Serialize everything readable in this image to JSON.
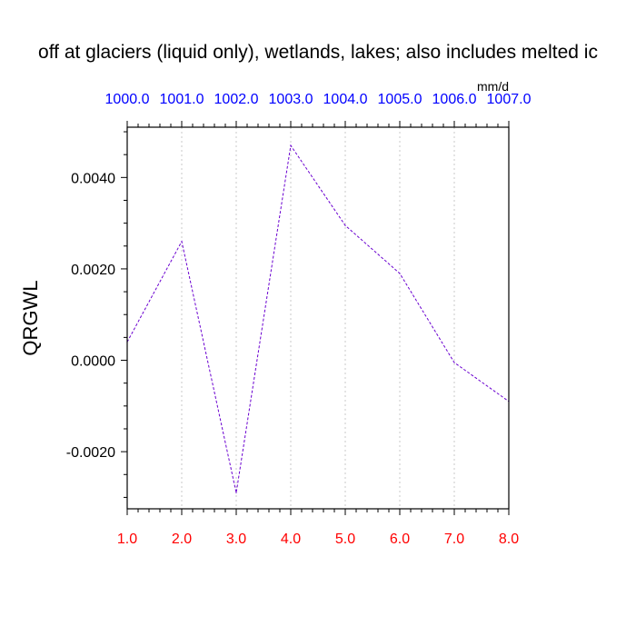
{
  "chart_data": {
    "type": "line",
    "title": "off at glaciers (liquid only), wetlands, lakes; also includes melted ic",
    "units": "mm/d",
    "ylabel": "QRGWL",
    "x": [
      1.0,
      2.0,
      3.0,
      4.0,
      5.0,
      6.0,
      7.0,
      8.0
    ],
    "xlim": [
      1.0,
      8.0
    ],
    "ylim": [
      -0.00325,
      0.0051
    ],
    "bottom_tick_labels": [
      "1.0",
      "2.0",
      "3.0",
      "4.0",
      "5.0",
      "6.0",
      "7.0",
      "8.0"
    ],
    "top_tick_labels": [
      "1000.0",
      "1001.0",
      "1002.0",
      "1003.0",
      "1004.0",
      "1005.0",
      "1006.0",
      "1007.0"
    ],
    "y_ticks": [
      -0.002,
      0.0,
      0.002,
      0.004
    ],
    "y_tick_labels": [
      "-0.0020",
      "0.0000",
      "0.0020",
      "0.0040"
    ],
    "grid": "vertical dotted at x ticks",
    "series": [
      {
        "values": [
          0.0004,
          0.0026,
          -0.0029,
          0.0047,
          0.00295,
          0.0019,
          -5e-05,
          -0.0009
        ]
      }
    ],
    "colors": {
      "line": "#6a00d0",
      "bottom_ticks": "#ff0000",
      "top_ticks": "#0000ff",
      "grid": "#c8c8c8",
      "axes": "#000000"
    }
  }
}
